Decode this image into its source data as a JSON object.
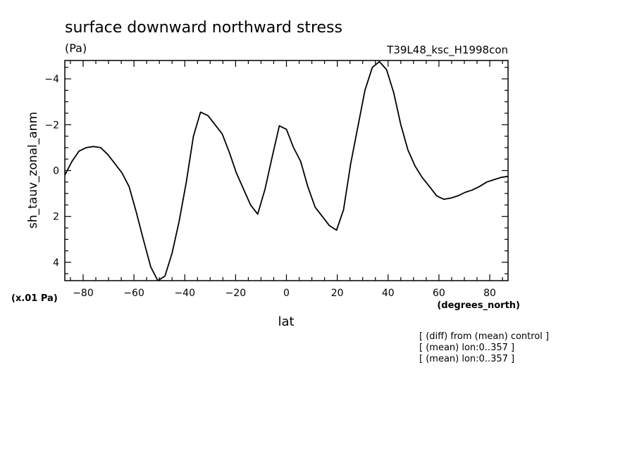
{
  "chart_data": {
    "type": "line",
    "title": "surface downward northward stress",
    "units": "(Pa)",
    "experiment": "T39L48_ksc_H1998con",
    "ylabel": "sh_tauv_zonal_anm",
    "yscale_note": "(x.01 Pa)",
    "xunits": "(degrees_north)",
    "xlabel": "lat",
    "notes": [
      "[ (diff) from (mean) control ]",
      "[ (mean) lon:0..357 ]",
      "[ (mean) lon:0..357 ]"
    ],
    "xlim": [
      -87.2,
      87.2
    ],
    "ylim": [
      4.8,
      -4.8
    ],
    "y_inverted": true,
    "xticks": [
      -80,
      -60,
      -40,
      -20,
      0,
      20,
      40,
      60,
      80
    ],
    "yticks": [
      -4,
      -2,
      0,
      2,
      4
    ],
    "series": [
      {
        "x": [
          -87.2,
          -84.4,
          -81.6,
          -78.8,
          -75.9,
          -73.1,
          -70.3,
          -67.5,
          -64.7,
          -61.9,
          -59.1,
          -56.3,
          -53.4,
          -50.6,
          -47.8,
          -45.0,
          -42.2,
          -39.4,
          -36.6,
          -33.8,
          -30.9,
          -28.1,
          -25.3,
          -22.5,
          -19.7,
          -16.9,
          -14.1,
          -11.3,
          -8.4,
          -5.6,
          -2.8,
          0.0,
          2.8,
          5.6,
          8.4,
          11.3,
          14.1,
          16.9,
          19.7,
          22.5,
          25.3,
          28.1,
          30.9,
          33.8,
          36.6,
          39.4,
          42.2,
          45.0,
          47.8,
          50.6,
          53.4,
          56.3,
          59.1,
          61.9,
          64.7,
          67.5,
          70.3,
          73.1,
          75.9,
          78.8,
          81.6,
          84.4,
          87.2
        ],
        "y": [
          0.2,
          -0.4,
          -0.85,
          -1.0,
          -1.05,
          -1.0,
          -0.7,
          -0.3,
          0.1,
          0.7,
          1.8,
          3.0,
          4.2,
          4.8,
          4.6,
          3.6,
          2.2,
          0.5,
          -1.5,
          -2.55,
          -2.4,
          -2.0,
          -1.6,
          -0.8,
          0.1,
          0.8,
          1.5,
          1.9,
          0.8,
          -0.6,
          -1.95,
          -1.8,
          -1.0,
          -0.4,
          0.7,
          1.6,
          2.0,
          2.4,
          2.6,
          1.7,
          -0.3,
          -1.9,
          -3.5,
          -4.5,
          -4.75,
          -4.4,
          -3.4,
          -2.0,
          -0.9,
          -0.2,
          0.3,
          0.7,
          1.1,
          1.25,
          1.2,
          1.1,
          0.95,
          0.85,
          0.7,
          0.5,
          0.4,
          0.3,
          0.25
        ]
      }
    ]
  }
}
